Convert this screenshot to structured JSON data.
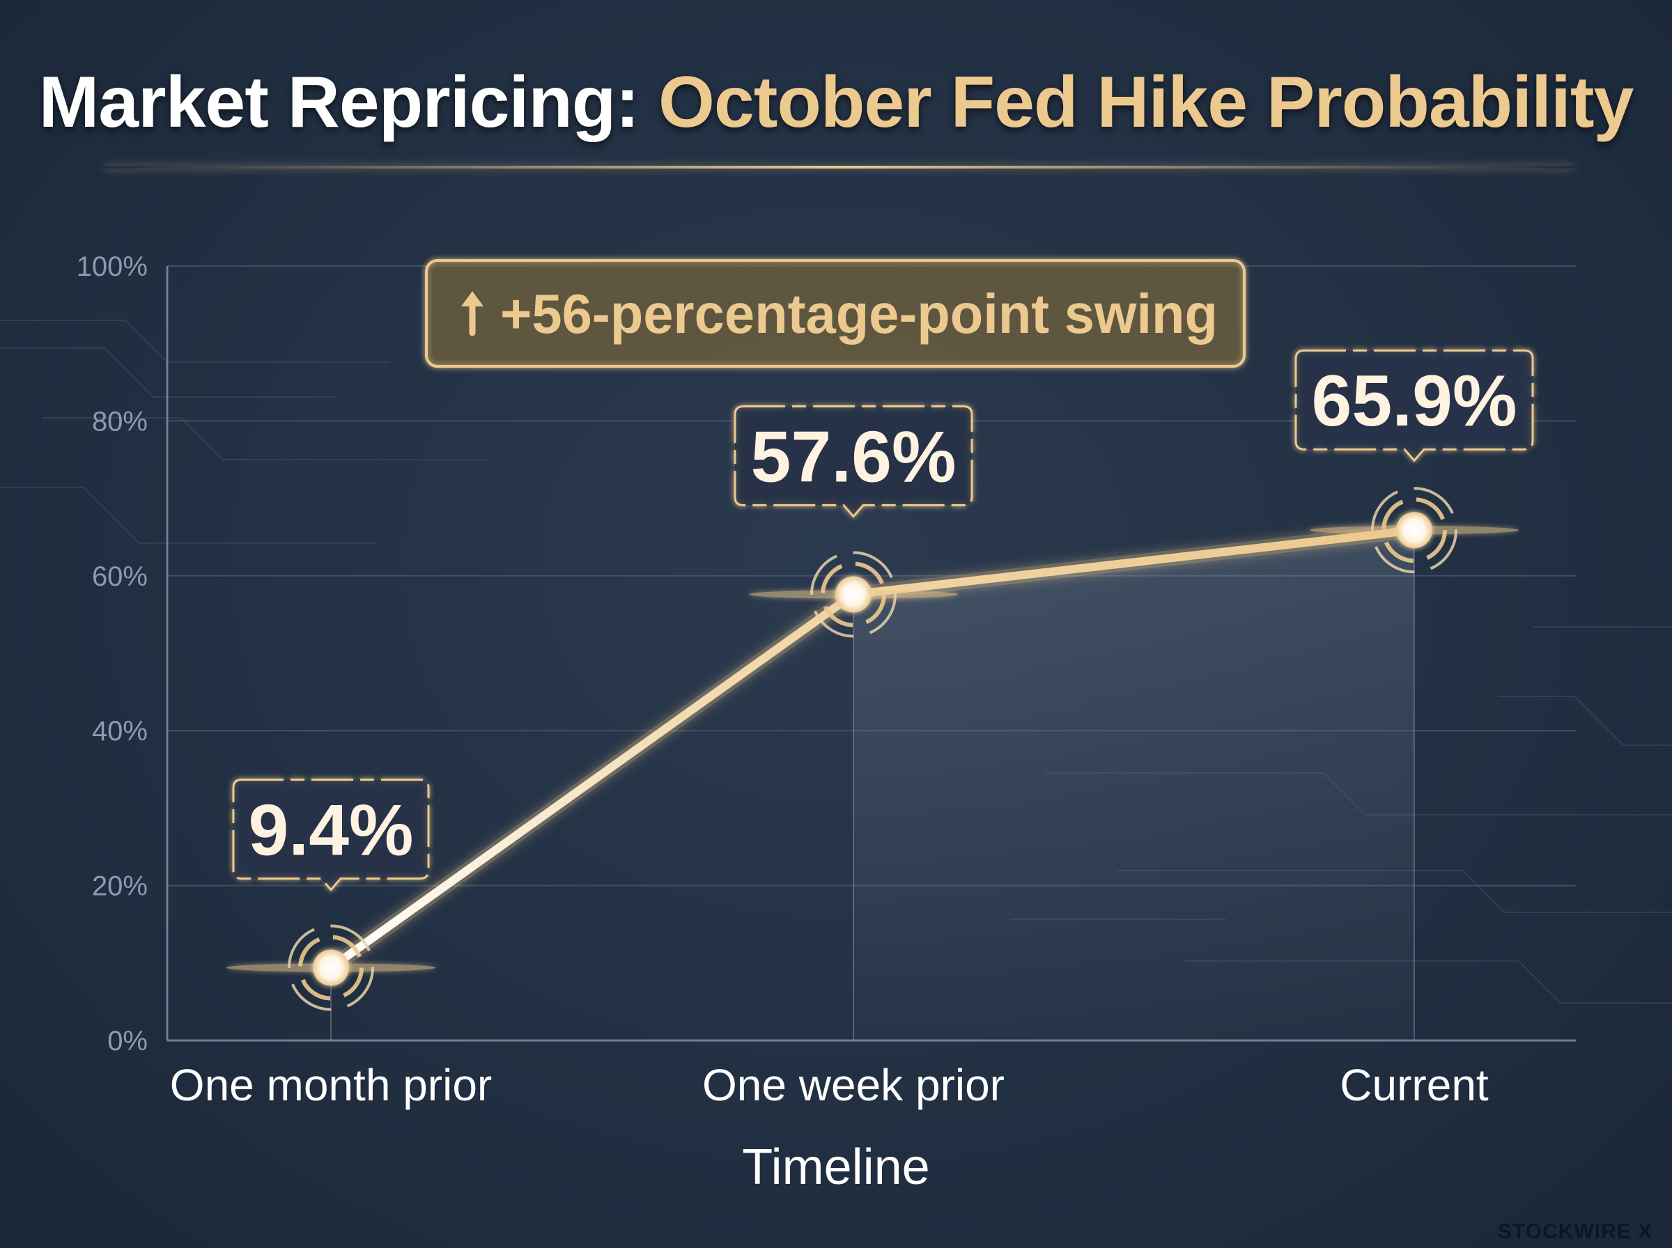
{
  "title": {
    "part1": "Market Repricing:",
    "part2": "October Fed Hike Probability"
  },
  "callout": {
    "icon": "arrow-up-icon",
    "text": "+56-percentage-point swing"
  },
  "colors": {
    "background": "#223043",
    "accent_gold": "#ecc98f",
    "line_white": "#ffffff",
    "grid": "#4a5a6e",
    "axis_text": "#8c9bb0"
  },
  "watermark": "STOCKWIRE X",
  "chart_data": {
    "type": "line",
    "title": "Market Repricing: October Fed Hike Probability",
    "xlabel": "Timeline",
    "ylabel": "",
    "categories": [
      "One month prior",
      "One week prior",
      "Current"
    ],
    "series": [
      {
        "values": [
          9.4,
          57.6,
          65.9
        ]
      }
    ],
    "data_labels": [
      "9.4%",
      "57.6%",
      "65.9%"
    ],
    "ylim": [
      0,
      100
    ],
    "yticks": [
      0,
      20,
      40,
      60,
      80,
      100
    ],
    "ytick_labels": [
      "0%",
      "20%",
      "40%",
      "60%",
      "80%",
      "100%"
    ],
    "grid": true,
    "legend": "none"
  }
}
